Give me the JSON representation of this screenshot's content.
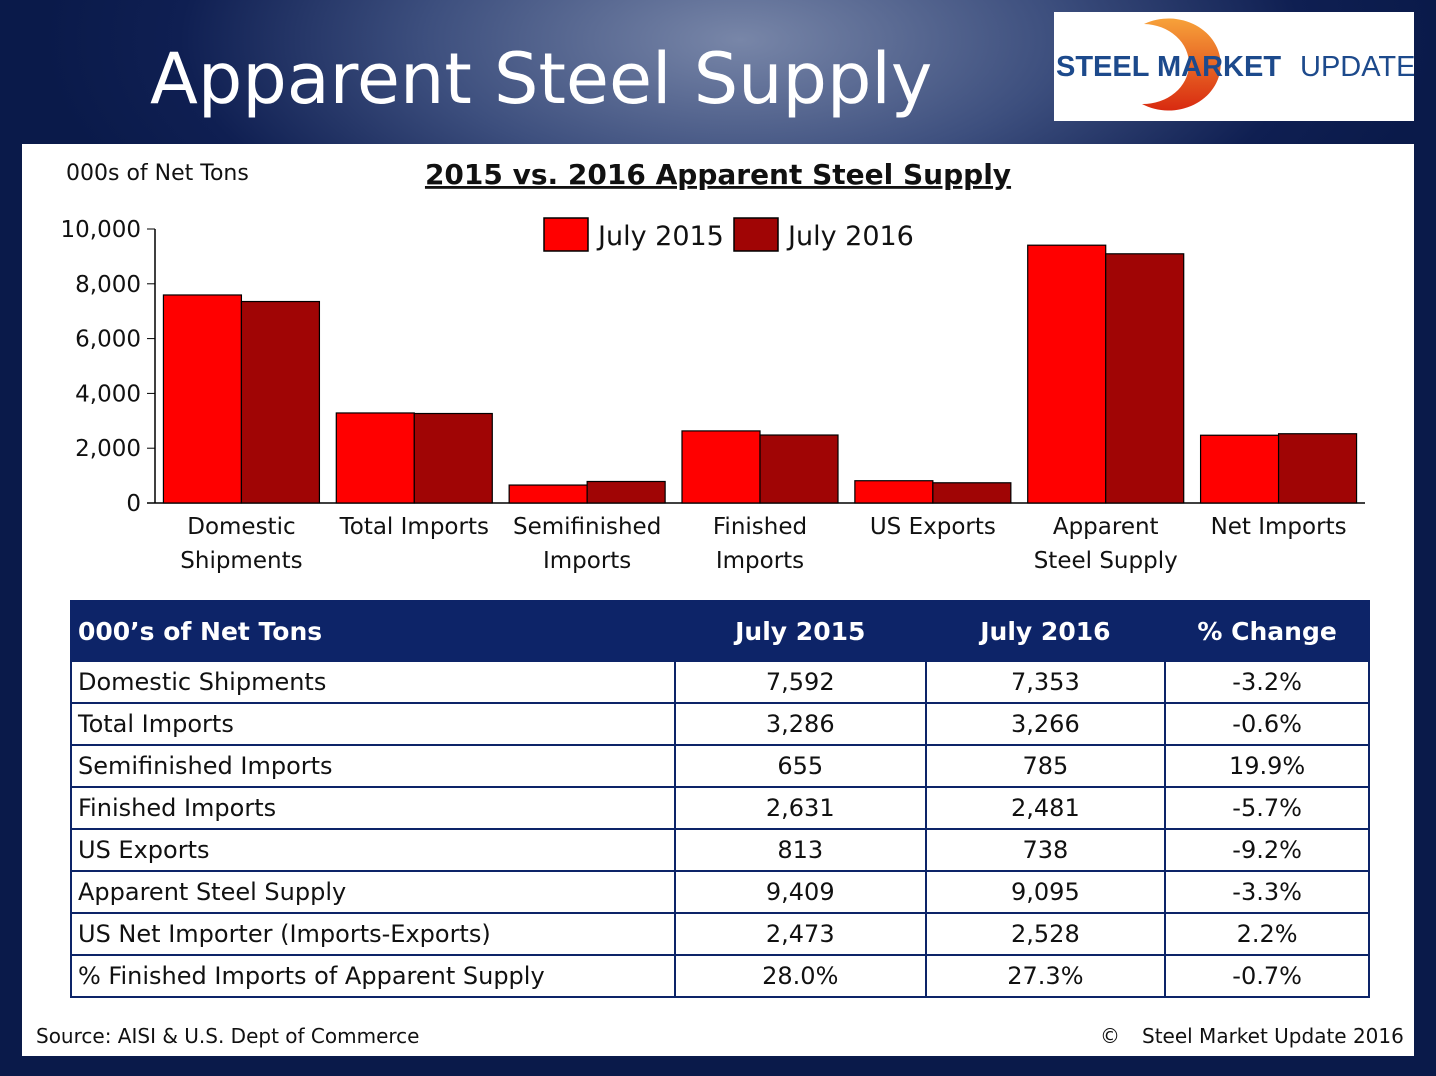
{
  "header": {
    "title": "Apparent Steel Supply",
    "logo_text": "STEEL MARKET UPDATE"
  },
  "colors": {
    "july2015": "#ff0000",
    "july2016": "#a00505",
    "header_bg": "#0d2468"
  },
  "chart_data": {
    "type": "bar",
    "title": "2015 vs. 2016 Apparent Steel Supply",
    "ylabel": "000s of Net Tons",
    "ylim": [
      0,
      10000
    ],
    "yticks": [
      "0",
      "2,000",
      "4,000",
      "6,000",
      "8,000",
      "10,000"
    ],
    "legend_position": "top",
    "categories": [
      [
        "Domestic",
        "Shipments"
      ],
      [
        "Total Imports"
      ],
      [
        "Semifinished",
        "Imports"
      ],
      [
        "Finished",
        "Imports"
      ],
      [
        "US Exports"
      ],
      [
        "Apparent",
        "Steel Supply"
      ],
      [
        "Net Imports"
      ]
    ],
    "series": [
      {
        "name": "July 2015",
        "values": [
          7592,
          3286,
          655,
          2631,
          813,
          9409,
          2473
        ]
      },
      {
        "name": "July 2016",
        "values": [
          7353,
          3266,
          785,
          2481,
          738,
          9095,
          2528
        ]
      }
    ]
  },
  "table": {
    "headers": [
      "000’s of Net Tons",
      "July 2015",
      "July 2016",
      "% Change"
    ],
    "rows": [
      [
        "Domestic Shipments",
        "7,592",
        "7,353",
        "-3.2%"
      ],
      [
        "Total Imports",
        "3,286",
        "3,266",
        "-0.6%"
      ],
      [
        "Semifinished Imports",
        "655",
        "785",
        "19.9%"
      ],
      [
        "Finished Imports",
        "2,631",
        "2,481",
        "-5.7%"
      ],
      [
        "US Exports",
        "813",
        "738",
        "-9.2%"
      ],
      [
        "Apparent Steel Supply",
        "9,409",
        "9,095",
        "-3.3%"
      ],
      [
        "US Net Importer (Imports-Exports)",
        "2,473",
        "2,528",
        "2.2%"
      ],
      [
        "% Finished Imports of Apparent Supply",
        "28.0%",
        "27.3%",
        "-0.7%"
      ]
    ]
  },
  "footer": {
    "source": "Source:  AISI & U.S. Dept of Commerce",
    "copyright_symbol": "©",
    "copyright": "Steel Market Update 2016"
  }
}
